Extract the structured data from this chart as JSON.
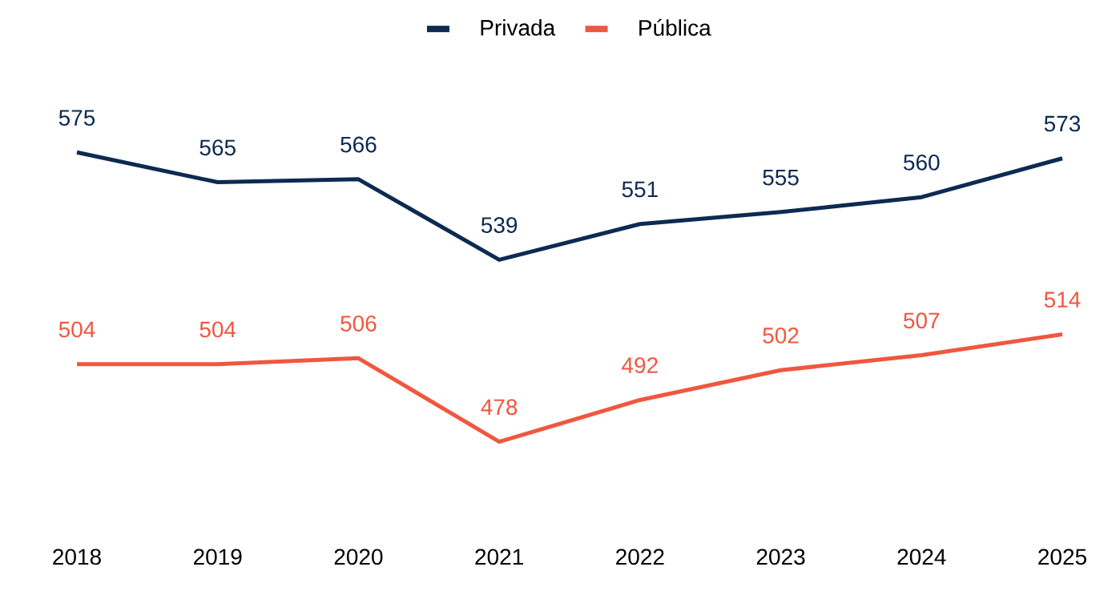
{
  "chart_data": {
    "type": "line",
    "categories": [
      "2018",
      "2019",
      "2020",
      "2021",
      "2022",
      "2023",
      "2024",
      "2025"
    ],
    "series": [
      {
        "name": "Privada",
        "color": "#0d2a52",
        "values": [
          575,
          565,
          566,
          539,
          551,
          555,
          560,
          573
        ]
      },
      {
        "name": "Pública",
        "color": "#f0573f",
        "values": [
          504,
          504,
          506,
          478,
          492,
          502,
          507,
          514
        ]
      }
    ],
    "data_labels": true,
    "legend": "top",
    "grid": false,
    "marker": "none",
    "line_style": "solid"
  }
}
